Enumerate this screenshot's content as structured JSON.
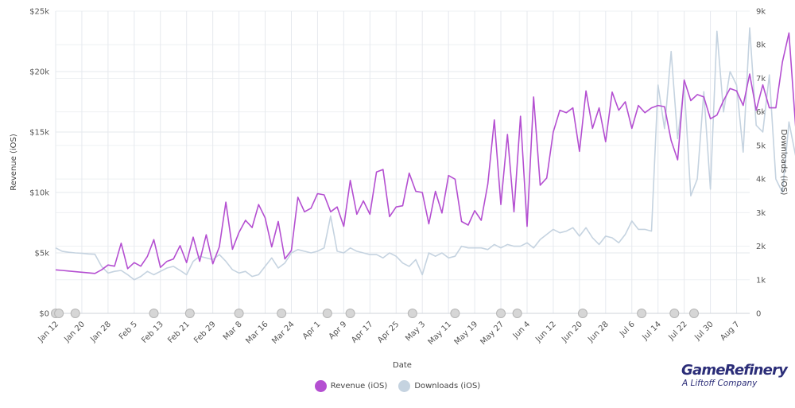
{
  "chart_data": {
    "type": "line",
    "title": "",
    "xlabel": "Date",
    "ylabel_left": "Revenue (iOS)",
    "ylabel_right": "Downloads (iOS)",
    "start_date": "2024-01-12",
    "day_step": 2,
    "xlim_days": [
      0,
      212
    ],
    "ylim_left": [
      0,
      25000
    ],
    "ylim_right": [
      0,
      9000
    ],
    "yticks_left": [
      "$0",
      "$5k",
      "$10k",
      "$15k",
      "$20k",
      "$25k"
    ],
    "ytick_values_left": [
      0,
      5000,
      10000,
      15000,
      20000,
      25000
    ],
    "yticks_right": [
      "0",
      "1k",
      "2k",
      "3k",
      "4k",
      "5k",
      "6k",
      "7k",
      "8k",
      "9k"
    ],
    "ytick_values_right": [
      0,
      1000,
      2000,
      3000,
      4000,
      5000,
      6000,
      7000,
      8000,
      9000
    ],
    "xticks": [
      "Jan 12",
      "Jan 20",
      "Jan 28",
      "Feb 5",
      "Feb 13",
      "Feb 21",
      "Feb 29",
      "Mar 8",
      "Mar 16",
      "Mar 24",
      "Apr 1",
      "Apr 9",
      "Apr 17",
      "Apr 25",
      "May 3",
      "May 11",
      "May 19",
      "May 27",
      "Jun 4",
      "Jun 12",
      "Jun 20",
      "Jun 28",
      "Jul 6",
      "Jul 14",
      "Jul 22",
      "Jul 30",
      "Aug 7"
    ],
    "xtick_days": [
      0,
      8,
      16,
      24,
      32,
      40,
      48,
      56,
      64,
      72,
      80,
      88,
      96,
      104,
      112,
      120,
      128,
      136,
      144,
      152,
      160,
      168,
      176,
      184,
      192,
      200,
      208
    ],
    "grid": true,
    "legend_position": "bottom",
    "series": [
      {
        "name": "Revenue (iOS)",
        "axis": "left",
        "color": "#b44fd1",
        "values": [
          3600,
          3550,
          3500,
          3450,
          3400,
          3350,
          3300,
          3600,
          4000,
          3900,
          5800,
          3700,
          4200,
          3900,
          4700,
          6100,
          3800,
          4300,
          4500,
          5600,
          4200,
          6300,
          4300,
          6500,
          4100,
          5500,
          9200,
          5300,
          6700,
          7700,
          7100,
          9000,
          7900,
          5500,
          7600,
          4500,
          5200,
          9600,
          8400,
          8700,
          9900,
          9800,
          8400,
          8800,
          7200,
          11000,
          8200,
          9300,
          8200,
          11700,
          11900,
          8000,
          8800,
          8900,
          11600,
          10100,
          10000,
          7400,
          10100,
          8300,
          11400,
          11100,
          7600,
          7300,
          8500,
          7700,
          10700,
          16000,
          9000,
          14800,
          8400,
          16300,
          7200,
          17900,
          10600,
          11200,
          15000,
          16800,
          16600,
          17000,
          13400,
          18400,
          15300,
          17000,
          14200,
          18300,
          16800,
          17500,
          15300,
          17200,
          16600,
          17000,
          17200,
          17100,
          14300,
          12700,
          19300,
          17600,
          18100,
          17900,
          16100,
          16400,
          17600,
          18600,
          18400,
          17200,
          19800,
          16800,
          18900,
          17000,
          17000,
          20800,
          23200,
          15500,
          16900,
          19200,
          20800,
          17700,
          18200,
          13200,
          19500,
          20700,
          21400,
          21600,
          19700,
          17800,
          18600,
          18800,
          19100,
          15400,
          22600,
          19100,
          18600,
          17200,
          16900,
          19700,
          21100,
          19900,
          17500,
          15000,
          18300,
          16900,
          17000,
          16200,
          16800,
          19900,
          20600,
          19700,
          15200,
          14400,
          13700,
          17700,
          18700,
          18900,
          19400,
          20200,
          18300,
          12300,
          11700,
          11900,
          16100,
          16900,
          15400,
          16000,
          14800,
          18400,
          15000,
          14800,
          19100,
          15700,
          21300
        ]
      },
      {
        "name": "Downloads (iOS)",
        "axis": "right",
        "color": "#c5d3e0",
        "values": [
          1950,
          1850,
          1820,
          1800,
          1790,
          1770,
          1760,
          1400,
          1200,
          1250,
          1280,
          1150,
          1000,
          1100,
          1250,
          1150,
          1250,
          1350,
          1400,
          1280,
          1150,
          1550,
          1700,
          1650,
          1600,
          1750,
          1550,
          1300,
          1200,
          1250,
          1100,
          1150,
          1400,
          1650,
          1350,
          1500,
          1800,
          1900,
          1850,
          1800,
          1850,
          1950,
          2900,
          1850,
          1800,
          1950,
          1850,
          1800,
          1750,
          1750,
          1650,
          1800,
          1700,
          1500,
          1400,
          1600,
          1150,
          1800,
          1700,
          1800,
          1650,
          1700,
          2000,
          1950,
          1950,
          1950,
          1900,
          2050,
          1950,
          2050,
          2000,
          2000,
          2100,
          1950,
          2200,
          2350,
          2500,
          2400,
          2450,
          2550,
          2300,
          2550,
          2250,
          2050,
          2300,
          2250,
          2100,
          2350,
          2750,
          2500,
          2500,
          2450,
          6800,
          5500,
          7800,
          5200,
          6800,
          3500,
          4000,
          6600,
          3700,
          8400,
          6000,
          7200,
          6800,
          4800,
          8500,
          5600,
          5400,
          7100,
          4000,
          3600,
          5700,
          4700,
          3500,
          5200,
          5100,
          4100,
          6500,
          8600,
          7000,
          4600,
          3700,
          3300,
          4200,
          5800,
          4100,
          4000,
          3900,
          6800,
          4700,
          3500,
          8800,
          8300,
          8700,
          6500,
          7800,
          8000,
          7200,
          6800,
          7300,
          4500,
          5100,
          3700,
          4500,
          3400,
          5200,
          3900,
          3700,
          3400,
          3600,
          6300,
          8000,
          7200,
          8500,
          7300,
          5200,
          6800,
          7500,
          6000,
          4300,
          5100,
          3600,
          2600,
          3100,
          3900,
          4000,
          3900,
          3900,
          3800,
          6100,
          6200,
          6500,
          6800,
          6900,
          6600,
          7100,
          7100,
          6500,
          2900,
          6700,
          7000,
          7300,
          7400,
          6200,
          3900,
          6200,
          5500,
          4200,
          5500,
          3700
        ]
      }
    ],
    "event_markers_days": [
      0,
      1,
      6,
      30,
      41,
      56,
      69,
      83,
      90,
      109,
      122,
      136,
      141,
      161,
      179,
      189,
      195
    ]
  },
  "axis_titles": {
    "x": "Date",
    "left": "Revenue (iOS)",
    "right": "Downloads (iOS)"
  },
  "legend": {
    "revenue_label": "Revenue (iOS)",
    "downloads_label": "Downloads (iOS)",
    "revenue_color": "#b44fd1",
    "downloads_color": "#c5d3e0"
  },
  "logo": {
    "main": "GameRefinery",
    "sub": "A Liftoff Company"
  }
}
